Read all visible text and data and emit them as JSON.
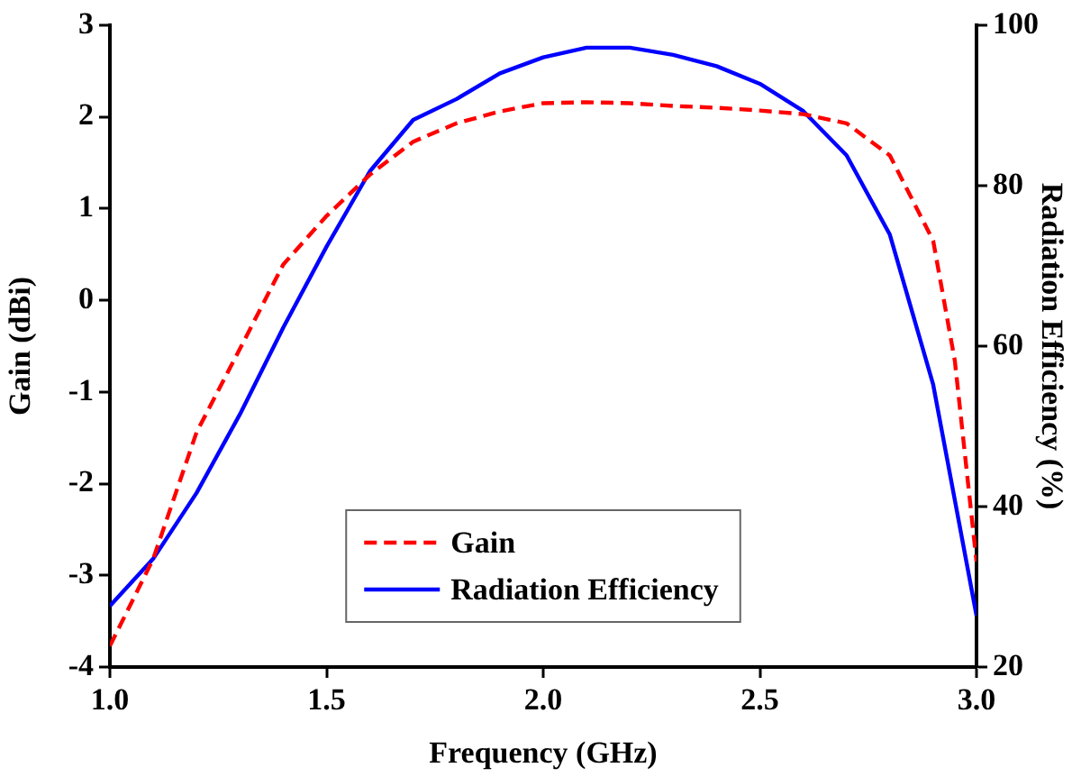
{
  "chart_data": {
    "type": "line",
    "xlabel": "Frequency (GHz)",
    "ylabel": "Gain (dBi)",
    "y2label": "Radiation Efficiency (%)",
    "x": [
      1.0,
      1.1,
      1.2,
      1.3,
      1.4,
      1.5,
      1.6,
      1.7,
      1.8,
      1.9,
      2.0,
      2.1,
      2.2,
      2.3,
      2.4,
      2.5,
      2.6,
      2.7,
      2.8,
      2.9,
      3.0
    ],
    "series": [
      {
        "name": "Gain",
        "color": "#ff0000",
        "line_style": "dashed",
        "x": [
          1.0,
          1.1,
          1.2,
          1.3,
          1.4,
          1.5,
          1.6,
          1.7,
          1.8,
          1.9,
          2.0,
          2.1,
          2.2,
          2.3,
          2.4,
          2.5,
          2.6,
          2.7,
          2.8,
          2.9,
          2.95,
          3.0
        ],
        "values": [
          -3.77,
          -2.82,
          -1.44,
          -0.53,
          0.39,
          0.92,
          1.37,
          1.73,
          1.93,
          2.06,
          2.15,
          2.16,
          2.15,
          2.12,
          2.1,
          2.07,
          2.03,
          1.93,
          1.58,
          0.65,
          -0.66,
          -2.85
        ]
      },
      {
        "name": "Radiation Efficiency",
        "color": "#0000ff",
        "line_style": "solid",
        "axis": "y2",
        "values": [
          27.6,
          33.5,
          41.7,
          51.5,
          62.3,
          72.4,
          81.8,
          88.2,
          90.8,
          94,
          96,
          97.2,
          97.2,
          96.3,
          94.9,
          92.7,
          89.3,
          83.8,
          73.9,
          55.2,
          26.4
        ]
      }
    ],
    "xlim": [
      1.0,
      3.0
    ],
    "xticks": [
      {
        "value": 1,
        "label": "1.0"
      },
      {
        "value": 1.5,
        "label": "1.5"
      },
      {
        "value": 2,
        "label": "2.0"
      },
      {
        "value": 2.5,
        "label": "2.5"
      },
      {
        "value": 3,
        "label": "3.0"
      }
    ],
    "ylim": [
      -4,
      3
    ],
    "yticks": [
      -4,
      -3,
      -2,
      -1,
      0,
      1,
      2,
      3
    ],
    "y2lim": [
      20,
      100
    ],
    "y2ticks": [
      20,
      40,
      60,
      80,
      100
    ],
    "grid": false,
    "legend": "bottom",
    "marker": "none"
  }
}
